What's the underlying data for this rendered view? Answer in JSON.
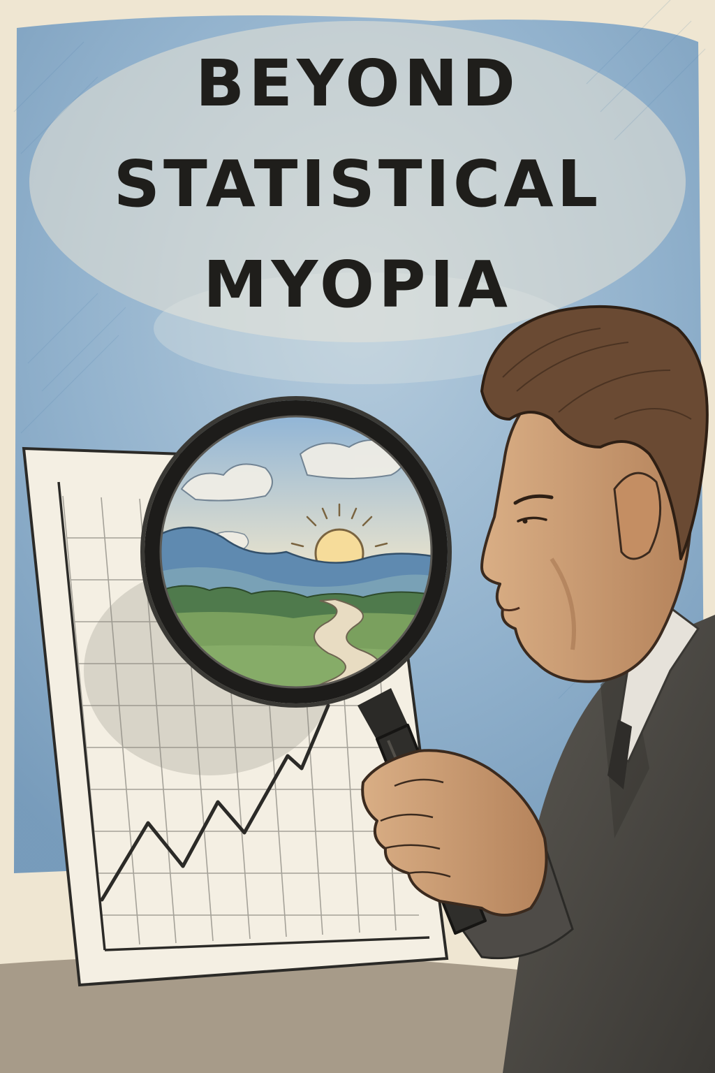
{
  "title": {
    "line1": "BEYOND",
    "line2": "STATISTICAL",
    "line3": "MYOPIA"
  },
  "illustration": {
    "style": "colored-pencil sketch",
    "subjects": [
      "man-in-profile",
      "magnifying-glass",
      "line-chart-on-paper",
      "landscape-with-sun-and-river"
    ]
  },
  "colors": {
    "paper": "#efe6d2",
    "sky_blue": "#6f9cc4",
    "ink": "#1f1e1b",
    "suit_gray": "#4e4b47",
    "skin": "#c89a72",
    "hair": "#6a4a33",
    "grass_green": "#6f9a5a"
  }
}
